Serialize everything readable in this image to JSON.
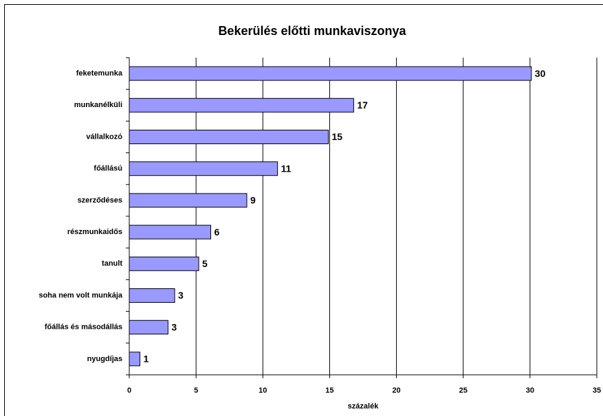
{
  "chart_data": {
    "type": "bar",
    "orientation": "horizontal",
    "title": "Bekerülés előtti munkaviszonya",
    "x_label": "százalék",
    "categories": [
      "feketemunka",
      "munkanélküli",
      "vállalkozó",
      "főállású",
      "szerződéses",
      "részmunkaidős",
      "tanult",
      "soha nem volt munkája",
      "főállás és másodállás",
      "nyugdíjas"
    ],
    "values": [
      30.1,
      16.8,
      14.9,
      11.1,
      8.8,
      6.1,
      5.2,
      3.4,
      2.9,
      0.8
    ],
    "value_labels": [
      "30",
      "17",
      "15",
      "11",
      "9",
      "6",
      "5",
      "3",
      "3",
      "1"
    ],
    "color": "#9999ff",
    "xlim": [
      0,
      35
    ],
    "xticks": [
      0,
      5,
      10,
      15,
      20,
      25,
      30,
      35
    ],
    "grid": true
  }
}
